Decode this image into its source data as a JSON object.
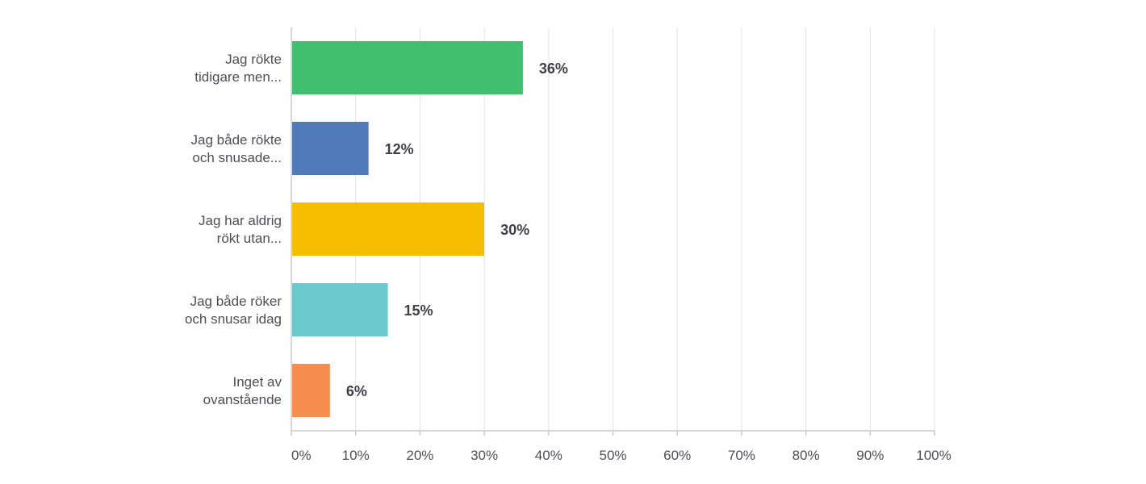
{
  "chart_data": {
    "type": "bar",
    "orientation": "horizontal",
    "categories": [
      [
        "Jag rökte",
        "tidigare men..."
      ],
      [
        "Jag både rökte",
        "och snusade..."
      ],
      [
        "Jag har aldrig",
        "rökt utan..."
      ],
      [
        "Jag både röker",
        "och snusar idag"
      ],
      [
        "Inget av",
        "ovanstående"
      ]
    ],
    "values": [
      36,
      12,
      30,
      15,
      6
    ],
    "value_labels": [
      "36%",
      "12%",
      "30%",
      "15%",
      "6%"
    ],
    "bar_colors": [
      "#41bf6f",
      "#4f79b7",
      "#f6be00",
      "#6bc8cd",
      "#f78e4f"
    ],
    "xlim": [
      0,
      100
    ],
    "x_ticks": [
      0,
      10,
      20,
      30,
      40,
      50,
      60,
      70,
      80,
      90,
      100
    ],
    "x_tick_labels": [
      "0%",
      "10%",
      "20%",
      "30%",
      "40%",
      "50%",
      "60%",
      "70%",
      "80%",
      "90%",
      "100%"
    ],
    "title": "",
    "xlabel": "",
    "ylabel": "",
    "grid": true,
    "legend": "none"
  }
}
